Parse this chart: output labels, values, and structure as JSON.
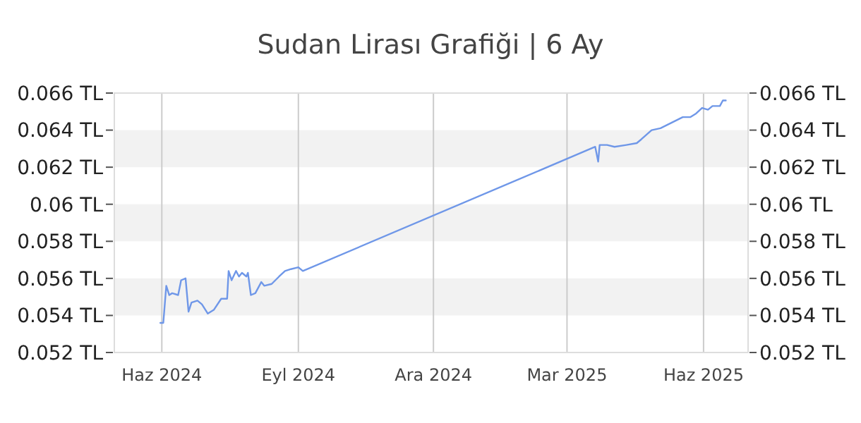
{
  "chart_data": {
    "type": "line",
    "title": "Sudan Lirası Grafiği | 6 Ay",
    "x": [
      "2024-05-31",
      "2024-06-02",
      "2024-06-04",
      "2024-06-06",
      "2024-06-08",
      "2024-06-12",
      "2024-06-14",
      "2024-06-17",
      "2024-06-19",
      "2024-06-21",
      "2024-06-25",
      "2024-06-28",
      "2024-07-02",
      "2024-07-06",
      "2024-07-11",
      "2024-07-15",
      "2024-07-16",
      "2024-07-18",
      "2024-07-21",
      "2024-07-23",
      "2024-07-25",
      "2024-07-28",
      "2024-07-29",
      "2024-07-31",
      "2024-08-03",
      "2024-08-07",
      "2024-08-09",
      "2024-08-14",
      "2024-08-19",
      "2024-08-23",
      "2024-08-27",
      "2024-09-01",
      "2024-09-04",
      "2025-03-20",
      "2025-03-22",
      "2025-03-23",
      "2025-03-28",
      "2025-04-02",
      "2025-04-10",
      "2025-04-17",
      "2025-04-20",
      "2025-04-27",
      "2025-05-03",
      "2025-05-08",
      "2025-05-13",
      "2025-05-18",
      "2025-05-23",
      "2025-05-27",
      "2025-05-31",
      "2025-06-04",
      "2025-06-07",
      "2025-06-12",
      "2025-06-14",
      "2025-06-16"
    ],
    "series": [
      {
        "color": "#6f97e8",
        "values": [
          0.0536,
          0.0536,
          0.0556,
          0.0551,
          0.0552,
          0.0551,
          0.0559,
          0.056,
          0.0542,
          0.0547,
          0.0548,
          0.0546,
          0.0541,
          0.0543,
          0.0549,
          0.0549,
          0.0564,
          0.0559,
          0.0564,
          0.0561,
          0.0563,
          0.0561,
          0.0563,
          0.0551,
          0.0552,
          0.0558,
          0.0556,
          0.0557,
          0.0561,
          0.0564,
          0.0565,
          0.0566,
          0.0564,
          0.0631,
          0.0623,
          0.0632,
          0.0632,
          0.0631,
          0.0632,
          0.0633,
          0.0635,
          0.064,
          0.0641,
          0.0643,
          0.0645,
          0.0647,
          0.0647,
          0.0649,
          0.0652,
          0.0651,
          0.0653,
          0.0653,
          0.0656,
          0.0656
        ]
      }
    ],
    "xlim": [
      "2024-04-30",
      "2025-07-01"
    ],
    "xticks": [
      {
        "value": "2024-06-01",
        "label": "Haz 2024"
      },
      {
        "value": "2024-09-01",
        "label": "Eyl 2024"
      },
      {
        "value": "2024-12-01",
        "label": "Ara 2024"
      },
      {
        "value": "2025-03-01",
        "label": "Mar 2025"
      },
      {
        "value": "2025-06-01",
        "label": "Haz 2025"
      }
    ],
    "ylim": [
      0.052,
      0.066
    ],
    "yticks": [
      {
        "value": 0.052,
        "label": "0.052 TL"
      },
      {
        "value": 0.054,
        "label": "0.054 TL"
      },
      {
        "value": 0.056,
        "label": "0.056 TL"
      },
      {
        "value": 0.058,
        "label": "0.058 TL"
      },
      {
        "value": 0.06,
        "label": "0.06 TL"
      },
      {
        "value": 0.062,
        "label": "0.062 TL"
      },
      {
        "value": 0.064,
        "label": "0.064 TL"
      },
      {
        "value": 0.066,
        "label": "0.066 TL"
      }
    ],
    "y2lim": [
      0.052,
      0.066
    ],
    "y2ticks": [
      {
        "value": 0.052,
        "label": "0.052 TL"
      },
      {
        "value": 0.054,
        "label": "0.054 TL"
      },
      {
        "value": 0.056,
        "label": "0.056 TL"
      },
      {
        "value": 0.058,
        "label": "0.058 TL"
      },
      {
        "value": 0.06,
        "label": "0.06 TL"
      },
      {
        "value": 0.062,
        "label": "0.062 TL"
      },
      {
        "value": 0.064,
        "label": "0.064 TL"
      },
      {
        "value": 0.066,
        "label": "0.066 TL"
      }
    ],
    "grid": true
  }
}
